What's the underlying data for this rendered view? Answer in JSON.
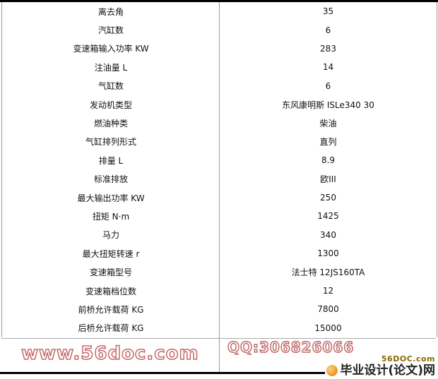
{
  "rows": [
    {
      "label": "离去角",
      "value": "35"
    },
    {
      "label": "汽缸数",
      "value": "6"
    },
    {
      "label": "变速箱输入功率 KW",
      "value": "283"
    },
    {
      "label": "注油量 L",
      "value": "14"
    },
    {
      "label": "气缸数",
      "value": "6"
    },
    {
      "label": "发动机类型",
      "value": "东风康明斯 ISLe340 30"
    },
    {
      "label": "燃油种类",
      "value": "柴油"
    },
    {
      "label": "气缸排列形式",
      "value": "直列"
    },
    {
      "label": "排量 L",
      "value": "8.9"
    },
    {
      "label": "标准排放",
      "value": "欧III"
    },
    {
      "label": "最大输出功率 KW",
      "value": "250"
    },
    {
      "label": "扭矩 N·m",
      "value": "1425"
    },
    {
      "label": "马力",
      "value": "340"
    },
    {
      "label": "最大扭矩转速 r",
      "value": "1300"
    },
    {
      "label": "变速箱型号",
      "value": "法士特 12JS160TA"
    },
    {
      "label": "变速箱档位数",
      "value": "12"
    },
    {
      "label": "前桥允许载荷 KG",
      "value": "7800"
    },
    {
      "label": "后桥允许载荷 KG",
      "value": "15000"
    }
  ],
  "watermarks": {
    "site": "www.56doc.com",
    "qq": "QQ:306826066",
    "color": "#c46a6a"
  },
  "logo": {
    "brand": "56DOC.com",
    "name": "毕业设计(论文)网"
  }
}
